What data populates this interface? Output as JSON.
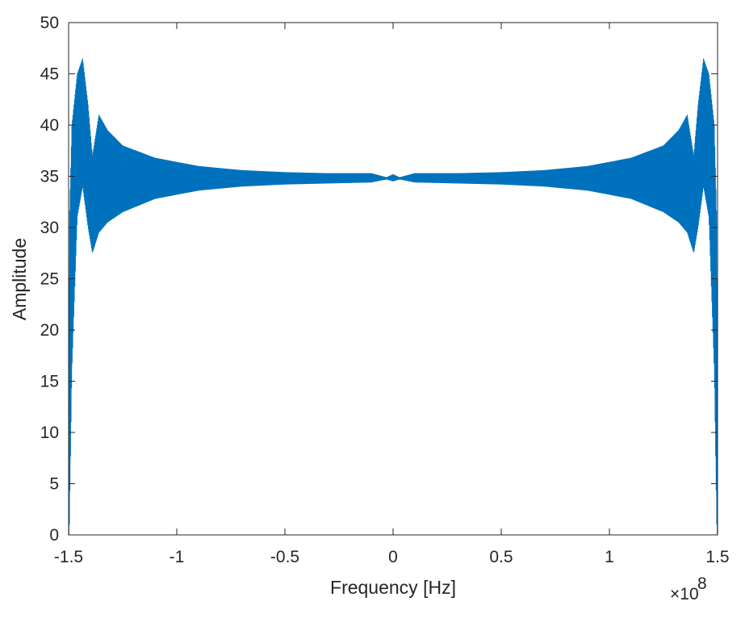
{
  "chart_data": {
    "type": "line",
    "title": "",
    "xlabel": "Frequency [Hz]",
    "ylabel": "Amplitude",
    "x_exponent_label": "×10",
    "x_exponent_power": "8",
    "xlim": [
      -1.5,
      1.5
    ],
    "ylim": [
      0,
      50
    ],
    "x_unit_scale": 100000000,
    "xticks": [
      -1.5,
      -1,
      -0.5,
      0,
      0.5,
      1,
      1.5
    ],
    "xtick_labels": [
      "-1.5",
      "-1",
      "-0.5",
      "0",
      "0.5",
      "1",
      "1.5"
    ],
    "yticks": [
      0,
      5,
      10,
      15,
      20,
      25,
      30,
      35,
      40,
      45,
      50
    ],
    "ytick_labels": [
      "0",
      "5",
      "10",
      "15",
      "20",
      "25",
      "30",
      "35",
      "40",
      "45",
      "50"
    ],
    "grid": false,
    "series": [
      {
        "color": "#0072BD",
        "center": 34.8,
        "envelope": [
          {
            "x": -1.5,
            "upper": 0,
            "lower": 0
          },
          {
            "x": -1.497,
            "upper": 30,
            "lower": 0
          },
          {
            "x": -1.485,
            "upper": 40,
            "lower": 16
          },
          {
            "x": -1.46,
            "upper": 45,
            "lower": 31
          },
          {
            "x": -1.435,
            "upper": 46.5,
            "lower": 34
          },
          {
            "x": -1.41,
            "upper": 42,
            "lower": 30
          },
          {
            "x": -1.39,
            "upper": 37,
            "lower": 27.5
          },
          {
            "x": -1.36,
            "upper": 41,
            "lower": 29.5
          },
          {
            "x": -1.32,
            "upper": 39.5,
            "lower": 30.5
          },
          {
            "x": -1.25,
            "upper": 38,
            "lower": 31.5
          },
          {
            "x": -1.1,
            "upper": 36.8,
            "lower": 32.8
          },
          {
            "x": -0.9,
            "upper": 36,
            "lower": 33.6
          },
          {
            "x": -0.7,
            "upper": 35.6,
            "lower": 34
          },
          {
            "x": -0.5,
            "upper": 35.4,
            "lower": 34.2
          },
          {
            "x": -0.3,
            "upper": 35.3,
            "lower": 34.3
          },
          {
            "x": -0.1,
            "upper": 35.3,
            "lower": 34.4
          },
          {
            "x": -0.03,
            "upper": 34.9,
            "lower": 34.7
          },
          {
            "x": 0,
            "upper": 35.2,
            "lower": 34.5
          },
          {
            "x": 0.03,
            "upper": 34.9,
            "lower": 34.7
          },
          {
            "x": 0.1,
            "upper": 35.3,
            "lower": 34.4
          },
          {
            "x": 0.3,
            "upper": 35.3,
            "lower": 34.3
          },
          {
            "x": 0.5,
            "upper": 35.4,
            "lower": 34.2
          },
          {
            "x": 0.7,
            "upper": 35.6,
            "lower": 34
          },
          {
            "x": 0.9,
            "upper": 36,
            "lower": 33.6
          },
          {
            "x": 1.1,
            "upper": 36.8,
            "lower": 32.8
          },
          {
            "x": 1.25,
            "upper": 38,
            "lower": 31.5
          },
          {
            "x": 1.32,
            "upper": 39.5,
            "lower": 30.5
          },
          {
            "x": 1.36,
            "upper": 41,
            "lower": 29.5
          },
          {
            "x": 1.39,
            "upper": 37,
            "lower": 27.5
          },
          {
            "x": 1.41,
            "upper": 42,
            "lower": 30
          },
          {
            "x": 1.435,
            "upper": 46.5,
            "lower": 34
          },
          {
            "x": 1.46,
            "upper": 45,
            "lower": 31
          },
          {
            "x": 1.485,
            "upper": 40,
            "lower": 16
          },
          {
            "x": 1.497,
            "upper": 30,
            "lower": 0
          },
          {
            "x": 1.5,
            "upper": 0,
            "lower": 0
          }
        ]
      }
    ]
  }
}
